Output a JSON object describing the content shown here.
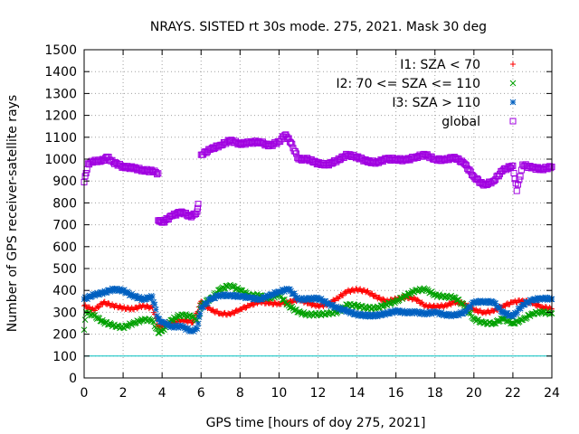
{
  "chart_data": {
    "type": "scatter",
    "title": "NRAYS. SISTED rt 30s mode. 275, 2021. Mask 30 deg",
    "xlabel": "GPS time [hours of doy 275, 2021]",
    "ylabel": "Number of GPS receiver-satellite rays",
    "xlim": [
      0,
      24
    ],
    "ylim": [
      0,
      1500
    ],
    "x_ticks": [
      "0",
      "2",
      "4",
      "6",
      "8",
      "10",
      "12",
      "14",
      "16",
      "18",
      "20",
      "22",
      "24"
    ],
    "y_ticks": [
      "0",
      "100",
      "200",
      "300",
      "400",
      "500",
      "600",
      "700",
      "800",
      "900",
      "1000",
      "1100",
      "1200",
      "1300",
      "1400",
      "1500"
    ],
    "grid": true,
    "legend_position": "top-right",
    "reference_line": {
      "y": 100,
      "color": "#00c0c0"
    },
    "series": [
      {
        "name": "I1: SZA < 70",
        "color": "#ff0000",
        "marker": "+",
        "points": [
          [
            0,
            330
          ],
          [
            0.5,
            310
          ],
          [
            1,
            345
          ],
          [
            1.5,
            330
          ],
          [
            2,
            320
          ],
          [
            2.5,
            315
          ],
          [
            3,
            330
          ],
          [
            3.5,
            320
          ],
          [
            3.8,
            235
          ],
          [
            4.5,
            250
          ],
          [
            5,
            265
          ],
          [
            5.6,
            255
          ],
          [
            6,
            350
          ],
          [
            6.5,
            310
          ],
          [
            7,
            295
          ],
          [
            7.5,
            290
          ],
          [
            8,
            315
          ],
          [
            8.5,
            330
          ],
          [
            9,
            350
          ],
          [
            9.5,
            340
          ],
          [
            10,
            340
          ],
          [
            10.5,
            345
          ],
          [
            11,
            360
          ],
          [
            11.5,
            340
          ],
          [
            12,
            330
          ],
          [
            12.5,
            335
          ],
          [
            13,
            365
          ],
          [
            13.5,
            395
          ],
          [
            14,
            405
          ],
          [
            14.5,
            395
          ],
          [
            15,
            370
          ],
          [
            15.5,
            350
          ],
          [
            16,
            360
          ],
          [
            16.5,
            370
          ],
          [
            17,
            360
          ],
          [
            17.5,
            330
          ],
          [
            18,
            325
          ],
          [
            18.5,
            330
          ],
          [
            19,
            345
          ],
          [
            19.5,
            340
          ],
          [
            20,
            310
          ],
          [
            20.5,
            300
          ],
          [
            21,
            305
          ],
          [
            21.5,
            330
          ],
          [
            22,
            345
          ],
          [
            22.5,
            355
          ],
          [
            23,
            340
          ],
          [
            23.5,
            325
          ],
          [
            24,
            315
          ]
        ]
      },
      {
        "name": "I2: 70 <= SZA <= 110",
        "color": "#00a000",
        "marker": "x",
        "points": [
          [
            0,
            220
          ],
          [
            0.1,
            300
          ],
          [
            0.5,
            285
          ],
          [
            1,
            255
          ],
          [
            1.5,
            240
          ],
          [
            2,
            230
          ],
          [
            2.5,
            250
          ],
          [
            3,
            265
          ],
          [
            3.5,
            265
          ],
          [
            3.8,
            205
          ],
          [
            4,
            215
          ],
          [
            4.5,
            265
          ],
          [
            5,
            290
          ],
          [
            5.5,
            280
          ],
          [
            5.8,
            265
          ],
          [
            6,
            330
          ],
          [
            6.5,
            365
          ],
          [
            7,
            405
          ],
          [
            7.5,
            425
          ],
          [
            8,
            400
          ],
          [
            8.5,
            380
          ],
          [
            9,
            375
          ],
          [
            9.5,
            365
          ],
          [
            10,
            380
          ],
          [
            10.5,
            330
          ],
          [
            11,
            300
          ],
          [
            11.5,
            290
          ],
          [
            12,
            290
          ],
          [
            12.5,
            295
          ],
          [
            13,
            300
          ],
          [
            13.5,
            335
          ],
          [
            14,
            330
          ],
          [
            14.5,
            320
          ],
          [
            15,
            320
          ],
          [
            15.5,
            335
          ],
          [
            16,
            350
          ],
          [
            16.5,
            375
          ],
          [
            17,
            400
          ],
          [
            17.5,
            405
          ],
          [
            18,
            380
          ],
          [
            18.5,
            370
          ],
          [
            19,
            370
          ],
          [
            19.5,
            330
          ],
          [
            20,
            270
          ],
          [
            20.5,
            250
          ],
          [
            21,
            250
          ],
          [
            21.5,
            270
          ],
          [
            22,
            250
          ],
          [
            22.5,
            265
          ],
          [
            23,
            295
          ],
          [
            23.5,
            300
          ],
          [
            24,
            295
          ]
        ]
      },
      {
        "name": "I3: SZA > 110",
        "color": "#0060c0",
        "marker": "*",
        "points": [
          [
            0,
            360
          ],
          [
            0.5,
            380
          ],
          [
            1,
            390
          ],
          [
            1.5,
            405
          ],
          [
            2,
            400
          ],
          [
            2.5,
            375
          ],
          [
            3,
            360
          ],
          [
            3.5,
            370
          ],
          [
            3.8,
            270
          ],
          [
            4,
            255
          ],
          [
            4.5,
            235
          ],
          [
            5,
            235
          ],
          [
            5.5,
            215
          ],
          [
            5.8,
            225
          ],
          [
            6,
            320
          ],
          [
            6.5,
            360
          ],
          [
            7,
            380
          ],
          [
            7.5,
            375
          ],
          [
            8,
            375
          ],
          [
            8.5,
            365
          ],
          [
            9,
            360
          ],
          [
            9.5,
            375
          ],
          [
            10,
            395
          ],
          [
            10.5,
            405
          ],
          [
            11,
            360
          ],
          [
            11.5,
            360
          ],
          [
            12,
            365
          ],
          [
            12.5,
            340
          ],
          [
            13,
            320
          ],
          [
            13.5,
            305
          ],
          [
            14,
            290
          ],
          [
            14.5,
            285
          ],
          [
            15,
            285
          ],
          [
            15.5,
            295
          ],
          [
            16,
            305
          ],
          [
            16.5,
            300
          ],
          [
            17,
            300
          ],
          [
            17.5,
            295
          ],
          [
            18,
            300
          ],
          [
            18.5,
            290
          ],
          [
            19,
            285
          ],
          [
            19.5,
            300
          ],
          [
            20,
            345
          ],
          [
            20.5,
            350
          ],
          [
            21,
            345
          ],
          [
            21.5,
            300
          ],
          [
            22,
            280
          ],
          [
            22.5,
            335
          ],
          [
            23,
            355
          ],
          [
            23.5,
            365
          ],
          [
            24,
            360
          ]
        ]
      },
      {
        "name": "global",
        "color": "#a000e0",
        "marker": "square",
        "points": [
          [
            0,
            895
          ],
          [
            0.2,
            980
          ],
          [
            0.5,
            990
          ],
          [
            1,
            995
          ],
          [
            1.2,
            1010
          ],
          [
            1.5,
            985
          ],
          [
            2,
            965
          ],
          [
            2.5,
            960
          ],
          [
            3,
            950
          ],
          [
            3.5,
            945
          ],
          [
            3.8,
            935
          ],
          [
            3.8,
            720
          ],
          [
            4,
            710
          ],
          [
            4.5,
            740
          ],
          [
            5,
            760
          ],
          [
            5.5,
            735
          ],
          [
            5.8,
            760
          ],
          [
            5.85,
            795
          ],
          [
            6,
            1020
          ],
          [
            6.5,
            1045
          ],
          [
            7,
            1065
          ],
          [
            7.5,
            1085
          ],
          [
            8,
            1070
          ],
          [
            8.5,
            1075
          ],
          [
            9,
            1080
          ],
          [
            9.5,
            1060
          ],
          [
            10,
            1080
          ],
          [
            10.3,
            1110
          ],
          [
            10.5,
            1095
          ],
          [
            11,
            1000
          ],
          [
            11.5,
            1000
          ],
          [
            12,
            980
          ],
          [
            12.5,
            975
          ],
          [
            13,
            995
          ],
          [
            13.5,
            1020
          ],
          [
            14,
            1010
          ],
          [
            14.5,
            990
          ],
          [
            15,
            985
          ],
          [
            15.5,
            1000
          ],
          [
            16,
            1000
          ],
          [
            16.5,
            995
          ],
          [
            17,
            1010
          ],
          [
            17.5,
            1020
          ],
          [
            18,
            1000
          ],
          [
            18.5,
            995
          ],
          [
            19,
            1010
          ],
          [
            19.5,
            980
          ],
          [
            20,
            920
          ],
          [
            20.5,
            880
          ],
          [
            21,
            900
          ],
          [
            21.5,
            950
          ],
          [
            22,
            970
          ],
          [
            22.2,
            855
          ],
          [
            22.5,
            975
          ],
          [
            23,
            960
          ],
          [
            23.5,
            955
          ],
          [
            24,
            965
          ]
        ]
      }
    ]
  }
}
